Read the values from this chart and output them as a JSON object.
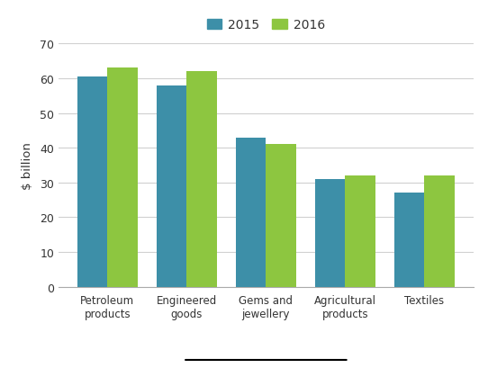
{
  "categories": [
    "Petroleum\nproducts",
    "Engineered\ngoods",
    "Gems and\njewellery",
    "Agricultural\nproducts",
    "Textiles"
  ],
  "values_2015": [
    60.5,
    58,
    43,
    31,
    27
  ],
  "values_2016": [
    63,
    62,
    41,
    32,
    32
  ],
  "color_2015": "#3d8fa8",
  "color_2016": "#8dc640",
  "ylabel": "$ billion",
  "ylim": [
    0,
    70
  ],
  "yticks": [
    0,
    10,
    20,
    30,
    40,
    50,
    60,
    70
  ],
  "legend_labels": [
    "2015",
    "2016"
  ],
  "bar_width": 0.38,
  "background_color": "#ffffff",
  "grid_color": "#d0d0d0",
  "xlabel_color": "#333333",
  "ylabel_color": "#333333",
  "tick_label_color": "#333333",
  "spine_color": "#aaaaaa"
}
